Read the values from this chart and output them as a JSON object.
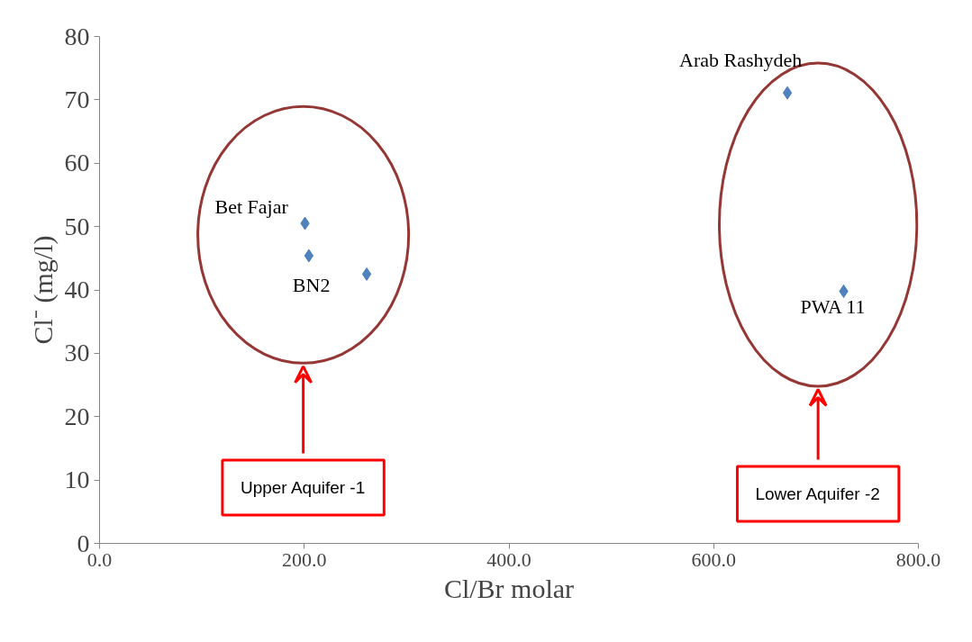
{
  "chart_data": {
    "type": "scatter",
    "xlabel": "Cl/Br molar",
    "ylabel": "Cl⁻ (mg/l)",
    "x": [
      200.7,
      204.5,
      261,
      672,
      727
    ],
    "values": [
      50.5,
      45.4,
      42.5,
      71.1,
      39.8
    ],
    "color": "#4f81bd",
    "marker": "diamond",
    "grid": false,
    "xlim": [
      0,
      800
    ],
    "ylim": [
      0,
      80
    ],
    "xticks": [
      {
        "value": 0,
        "label": "0.0"
      },
      {
        "value": 200,
        "label": "200.0"
      },
      {
        "value": 400,
        "label": "400.0"
      },
      {
        "value": 600,
        "label": "600.0"
      },
      {
        "value": 800,
        "label": "800.0"
      }
    ],
    "yticks": [
      0,
      10,
      20,
      30,
      40,
      50,
      60,
      70,
      80
    ],
    "annotations": [
      {
        "text": "Bet Fajar",
        "x": 200.7,
        "y": 50.5
      },
      {
        "text": "BN2",
        "x": 204.5,
        "y": 45.4
      },
      {
        "text": "Arab Rashydeh",
        "x": 672,
        "y": 71.1
      },
      {
        "text": "PWA 11",
        "x": 727,
        "y": 39.8
      },
      "Upper Aquifer -1",
      "Lower Aquifer -2"
    ]
  }
}
